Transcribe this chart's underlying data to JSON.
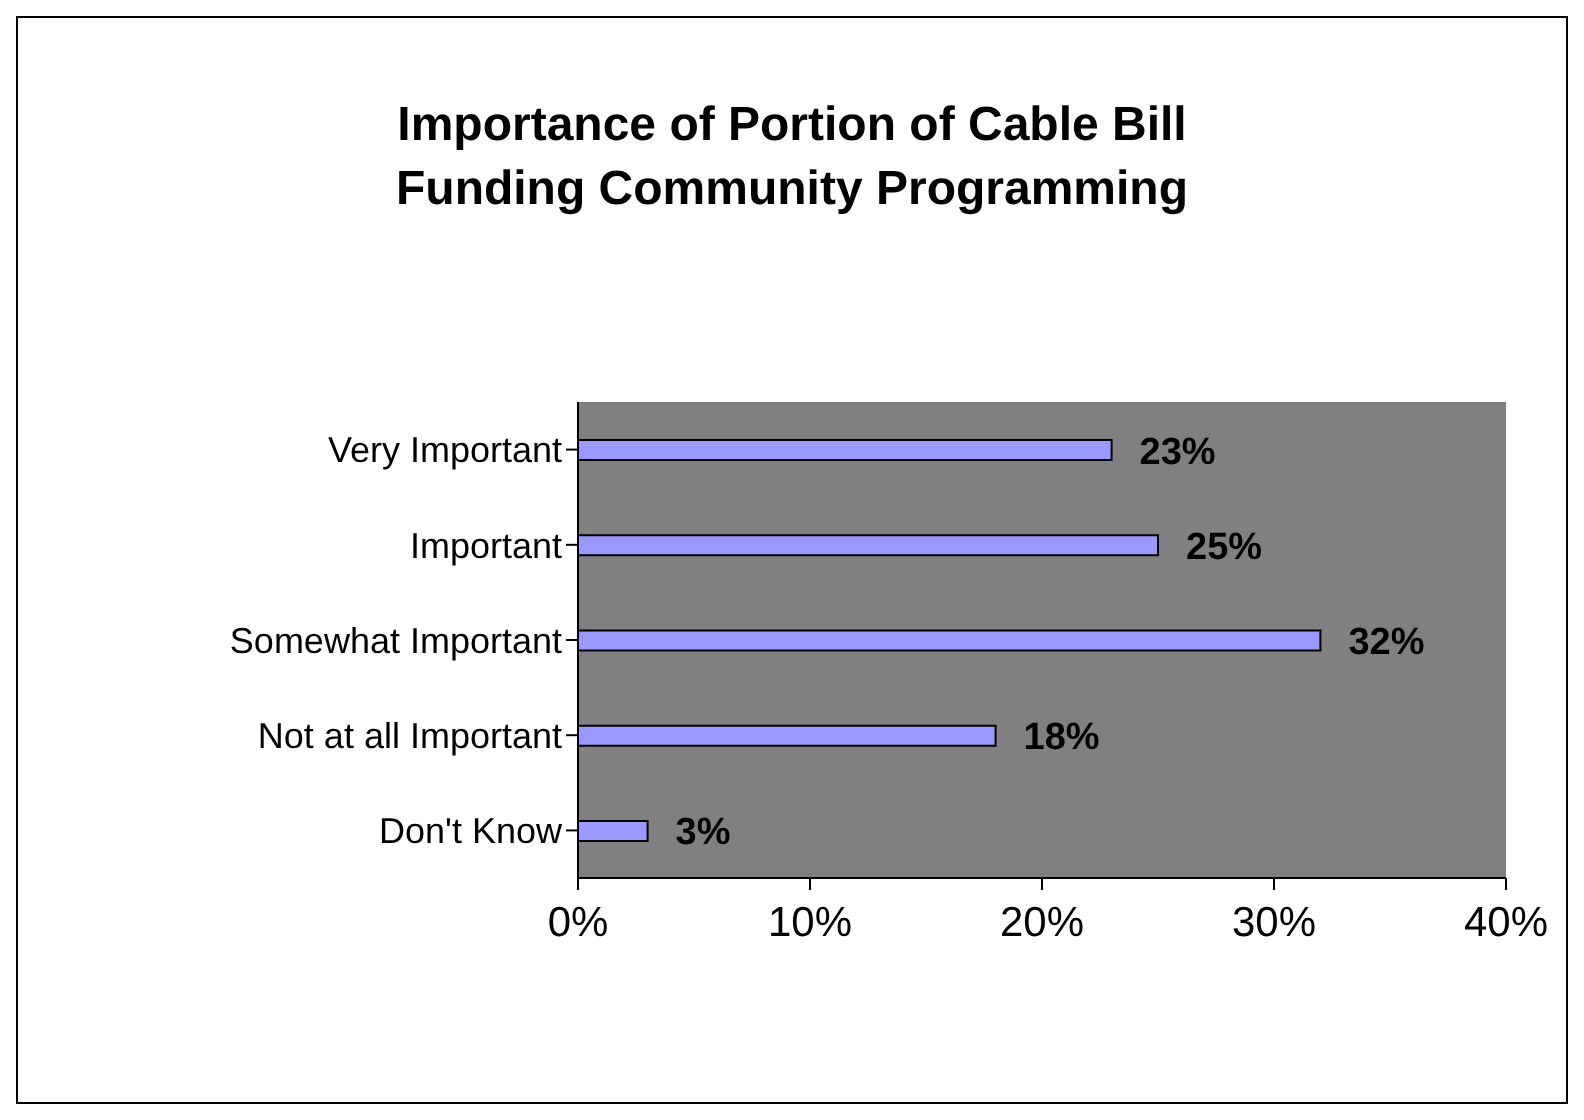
{
  "chart_data": {
    "type": "bar",
    "orientation": "horizontal",
    "title": "Importance of Portion of Cable Bill Funding Community Programming",
    "categories": [
      "Very Important",
      "Important",
      "Somewhat Important",
      "Not at all Important",
      "Don't Know"
    ],
    "values": [
      23,
      25,
      32,
      18,
      3
    ],
    "color": "#9999ff",
    "value_labels": [
      "23%",
      "25%",
      "32%",
      "18%",
      "3%"
    ],
    "xlim": [
      0,
      40
    ],
    "xticks": [
      {
        "value": 0,
        "label": "0%"
      },
      {
        "value": 10,
        "label": "10%"
      },
      {
        "value": 20,
        "label": "20%"
      },
      {
        "value": 30,
        "label": "30%"
      },
      {
        "value": 40,
        "label": "40%"
      }
    ],
    "grid": false,
    "legend": false
  }
}
